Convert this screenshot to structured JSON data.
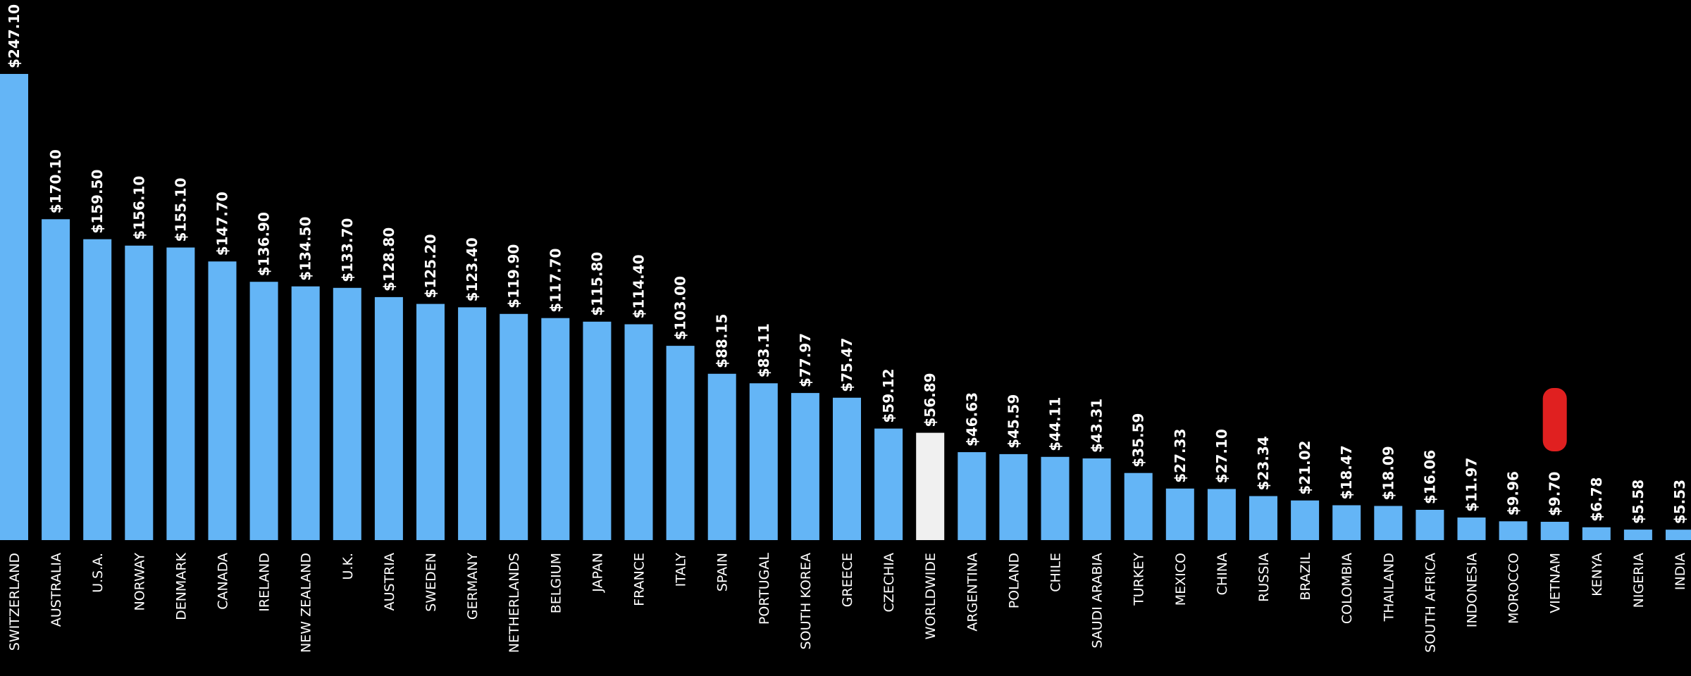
{
  "chart_data": {
    "type": "bar",
    "categories": [
      "SWITZERLAND",
      "AUSTRALIA",
      "U.S.A.",
      "NORWAY",
      "DENMARK",
      "CANADA",
      "IRELAND",
      "NEW ZEALAND",
      "U.K.",
      "AUSTRIA",
      "SWEDEN",
      "GERMANY",
      "NETHERLANDS",
      "BELGIUM",
      "JAPAN",
      "FRANCE",
      "ITALY",
      "SPAIN",
      "PORTUGAL",
      "SOUTH KOREA",
      "GREECE",
      "CZECHIA",
      "WORLDWIDE",
      "ARGENTINA",
      "POLAND",
      "CHILE",
      "SAUDI ARABIA",
      "TURKEY",
      "MEXICO",
      "CHINA",
      "RUSSIA",
      "BRAZIL",
      "COLOMBIA",
      "THAILAND",
      "SOUTH AFRICA",
      "INDONESIA",
      "MOROCCO",
      "VIETNAM",
      "KENYA",
      "NIGERIA",
      "INDIA"
    ],
    "values": [
      247.1,
      170.1,
      159.5,
      156.1,
      155.1,
      147.7,
      136.9,
      134.5,
      133.7,
      128.8,
      125.2,
      123.4,
      119.9,
      117.7,
      115.8,
      114.4,
      103.0,
      88.15,
      83.11,
      77.97,
      75.47,
      59.12,
      56.89,
      46.63,
      45.59,
      44.11,
      43.31,
      35.59,
      27.33,
      27.1,
      23.34,
      21.02,
      18.47,
      18.09,
      16.06,
      11.97,
      9.96,
      9.7,
      6.78,
      5.58,
      5.53
    ],
    "value_labels": [
      "$247.10",
      "$170.10",
      "$159.50",
      "$156.10",
      "$155.10",
      "$147.70",
      "$136.90",
      "$134.50",
      "$133.70",
      "$128.80",
      "$125.20",
      "$123.40",
      "$119.90",
      "$117.70",
      "$115.80",
      "$114.40",
      "$103.00",
      "$88.15",
      "$83.11",
      "$77.97",
      "$75.47",
      "$59.12",
      "$56.89",
      "$46.63",
      "$45.59",
      "$44.11",
      "$43.31",
      "$35.59",
      "$27.33",
      "$27.10",
      "$23.34",
      "$21.02",
      "$18.47",
      "$18.09",
      "$16.06",
      "$11.97",
      "$9.96",
      "$9.70",
      "$6.78",
      "$5.58",
      "$5.53"
    ],
    "highlight_category": "WORLDWIDE",
    "marker_category": "VIETNAM",
    "ylim": [
      0,
      247.1
    ],
    "grid": false,
    "title": "",
    "xlabel": "",
    "ylabel": ""
  },
  "colors": {
    "background": "#000000",
    "bar": "#64B5F6",
    "highlight_bar": "#F0F0F0",
    "marker": "#E02020",
    "text": "#FFFFFF"
  }
}
